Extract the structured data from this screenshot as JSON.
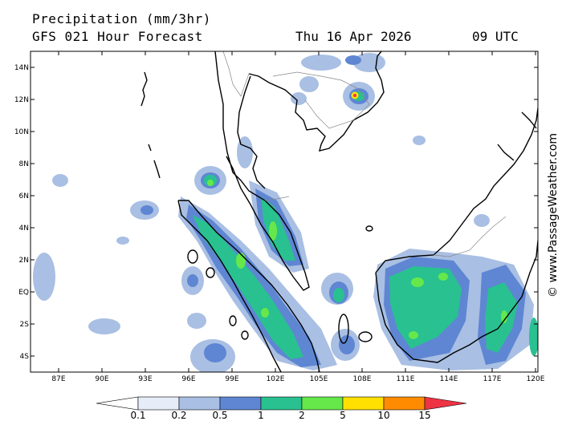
{
  "title": "Precipitation (mm/3hr)",
  "subtitle": "GFS 021 Hour Forecast",
  "date": "Thu 16 Apr 2026",
  "time": "09 UTC",
  "watermark": "© www.PassageWeather.com",
  "map": {
    "lat_labels": [
      "14N",
      "12N",
      "10N",
      "8N",
      "6N",
      "4N",
      "2N",
      "EQ",
      "2S",
      "4S"
    ],
    "lon_labels": [
      "87E",
      "90E",
      "93E",
      "96E",
      "99E",
      "102E",
      "105E",
      "108E",
      "111E",
      "114E",
      "117E",
      "120E"
    ],
    "lat_range": [
      -5,
      15
    ],
    "lon_range": [
      85,
      120
    ],
    "region": "Malay Peninsula, Sumatra and Borneo"
  },
  "colorbar": {
    "labels": [
      "0.1",
      "0.2",
      "0.5",
      "1",
      "2",
      "5",
      "10",
      "15"
    ],
    "colors": [
      "#ffffff",
      "#e6edf8",
      "#a9bfe3",
      "#5f86d3",
      "#29c190",
      "#66e84a",
      "#ffe000",
      "#ff8c00",
      "#ee3344"
    ]
  },
  "colors": {
    "light": "#a9bfe3",
    "medium": "#5f86d3",
    "heavy": "#29c190",
    "intense": "#66e84a"
  }
}
